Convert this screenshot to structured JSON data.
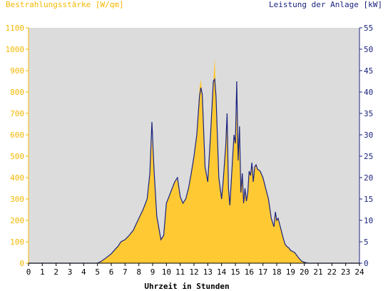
{
  "chart_data": {
    "type": "area",
    "ylabel_left": "Bestrahlungsstärke [W/qm]",
    "ylabel_right": "Leistung der Anlage [kW]",
    "xlabel": "Uhrzeit in Stunden",
    "x_ticks": [
      "0",
      "1",
      "2",
      "3",
      "4",
      "5",
      "6",
      "7",
      "8",
      "9",
      "10",
      "11",
      "12",
      "13",
      "14",
      "15",
      "16",
      "17",
      "18",
      "19",
      "20",
      "21",
      "22",
      "23",
      "24"
    ],
    "y_left_ticks": [
      "0",
      "100",
      "200",
      "300",
      "400",
      "500",
      "600",
      "700",
      "800",
      "900",
      "1000",
      "1100"
    ],
    "y_right_ticks": [
      "0",
      "5",
      "10",
      "15",
      "20",
      "25",
      "30",
      "35",
      "40",
      "45",
      "50",
      "55"
    ],
    "xlim": [
      0,
      24
    ],
    "ylim_left": [
      0,
      1100
    ],
    "ylim_right": [
      0,
      55
    ],
    "grid": false,
    "colors": {
      "irradiance_fill": "#ffc933",
      "power_line": "#1a237e",
      "plot_background": "#dcdcdc",
      "left_axis_text": "#f5b800",
      "right_axis_text": "#1a237e"
    },
    "series": [
      {
        "kind": "irradiance",
        "axis": "left",
        "x": [
          0,
          5,
          5.3,
          5.6,
          6,
          6.3,
          6.5,
          6.7,
          7,
          7.3,
          7.6,
          8,
          8.3,
          8.6,
          8.8,
          8.95,
          9.1,
          9.3,
          9.6,
          9.8,
          10,
          10.3,
          10.6,
          10.8,
          11,
          11.2,
          11.4,
          11.6,
          11.8,
          12,
          12.2,
          12.4,
          12.5,
          12.6,
          12.8,
          13,
          13.2,
          13.4,
          13.5,
          13.6,
          13.8,
          14,
          14.1,
          14.3,
          14.4,
          14.5,
          14.6,
          14.7,
          14.9,
          15,
          15.1,
          15.2,
          15.3,
          15.4,
          15.5,
          15.6,
          15.7,
          15.8,
          15.9,
          16,
          16.1,
          16.2,
          16.3,
          16.4,
          16.5,
          16.6,
          16.8,
          17,
          17.2,
          17.4,
          17.6,
          17.8,
          17.9,
          18,
          18.1,
          18.3,
          18.5,
          18.6,
          18.7,
          18.9,
          19,
          19.3,
          19.6,
          19.8,
          20,
          20.3,
          20.5,
          24
        ],
        "y": [
          0,
          0,
          10,
          25,
          45,
          65,
          80,
          100,
          110,
          130,
          155,
          210,
          250,
          300,
          420,
          580,
          450,
          220,
          110,
          130,
          280,
          330,
          380,
          390,
          310,
          280,
          300,
          350,
          420,
          500,
          600,
          820,
          860,
          790,
          450,
          380,
          600,
          850,
          960,
          780,
          400,
          300,
          370,
          550,
          700,
          350,
          270,
          380,
          600,
          560,
          720,
          480,
          640,
          330,
          420,
          280,
          350,
          290,
          330,
          430,
          410,
          470,
          380,
          450,
          460,
          440,
          430,
          400,
          350,
          300,
          210,
          170,
          240,
          200,
          210,
          160,
          110,
          90,
          80,
          70,
          60,
          50,
          25,
          10,
          5,
          0,
          0,
          0
        ]
      },
      {
        "kind": "power",
        "axis": "right",
        "x": [
          0,
          5,
          5.3,
          5.6,
          6,
          6.3,
          6.5,
          6.7,
          7,
          7.3,
          7.6,
          8,
          8.3,
          8.6,
          8.8,
          8.95,
          9.1,
          9.3,
          9.6,
          9.8,
          10,
          10.3,
          10.6,
          10.8,
          11,
          11.2,
          11.4,
          11.6,
          11.8,
          12,
          12.2,
          12.4,
          12.5,
          12.6,
          12.8,
          13,
          13.2,
          13.4,
          13.5,
          13.6,
          13.8,
          14,
          14.1,
          14.3,
          14.4,
          14.5,
          14.6,
          14.7,
          14.9,
          15,
          15.1,
          15.2,
          15.3,
          15.4,
          15.5,
          15.6,
          15.7,
          15.8,
          15.9,
          16,
          16.1,
          16.2,
          16.3,
          16.4,
          16.5,
          16.6,
          16.8,
          17,
          17.2,
          17.4,
          17.6,
          17.8,
          17.9,
          18,
          18.1,
          18.3,
          18.5,
          18.6,
          18.7,
          18.9,
          19,
          19.3,
          19.6,
          19.8,
          20,
          20.3,
          20.5,
          24
        ],
        "y": [
          0,
          0,
          0.5,
          1.2,
          2.2,
          3.3,
          4,
          5,
          5.5,
          6.5,
          7.7,
          10.5,
          12.5,
          15,
          21,
          33,
          22,
          11,
          5.5,
          6.5,
          14,
          16.5,
          19,
          20,
          15.5,
          14,
          15,
          17.5,
          21,
          25,
          30,
          39,
          41,
          39.5,
          22.5,
          19,
          30,
          42.5,
          43,
          39,
          20,
          15,
          18.5,
          27.5,
          35,
          17.5,
          13.5,
          19,
          30,
          28,
          42.5,
          24,
          32,
          16.5,
          21,
          14,
          17.5,
          14.5,
          16.5,
          21.5,
          20.5,
          23.5,
          19,
          22.5,
          23,
          22,
          21.5,
          20,
          17.5,
          15,
          10.5,
          8.5,
          12,
          10,
          10.5,
          8,
          5.5,
          4.5,
          4,
          3.5,
          3,
          2.5,
          1.2,
          0.5,
          0.2,
          0,
          0,
          0
        ]
      }
    ]
  }
}
